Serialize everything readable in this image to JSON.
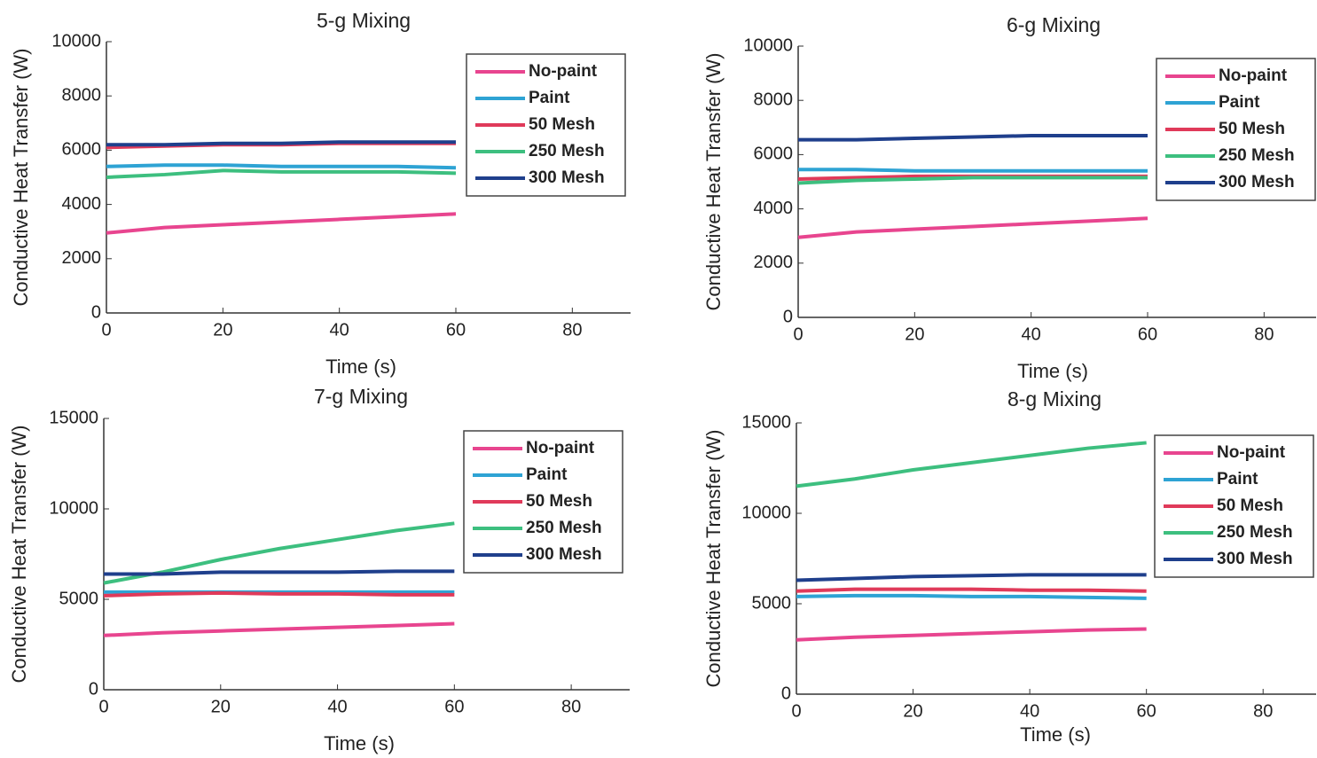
{
  "chart_data": [
    {
      "type": "line",
      "title": "5-g Mixing",
      "xlabel": "Time (s)",
      "ylabel": "Conductive Heat Transfer (W)",
      "x": [
        0,
        10,
        20,
        30,
        40,
        50,
        60
      ],
      "xlim": [
        0,
        90
      ],
      "xticks": [
        0,
        20,
        40,
        60,
        80
      ],
      "ylim": [
        0,
        10000
      ],
      "yticks": [
        0,
        2000,
        4000,
        6000,
        8000,
        10000
      ],
      "series": [
        {
          "name": "No-paint",
          "color": "#e8458f",
          "values": [
            2950,
            3150,
            3250,
            3350,
            3450,
            3550,
            3650
          ]
        },
        {
          "name": "Paint",
          "color": "#2ea3d4",
          "values": [
            5400,
            5450,
            5450,
            5400,
            5400,
            5400,
            5350
          ]
        },
        {
          "name": "50 Mesh",
          "color": "#e03a5a",
          "values": [
            6100,
            6150,
            6200,
            6200,
            6250,
            6250,
            6250
          ]
        },
        {
          "name": "250 Mesh",
          "color": "#3dbf7f",
          "values": [
            5000,
            5100,
            5250,
            5200,
            5200,
            5200,
            5150
          ]
        },
        {
          "name": "300 Mesh",
          "color": "#1f3f8c",
          "values": [
            6200,
            6200,
            6250,
            6250,
            6300,
            6300,
            6300
          ]
        }
      ]
    },
    {
      "type": "line",
      "title": "6-g Mixing",
      "xlabel": "Time (s)",
      "ylabel": "Conductive Heat Transfer (W)",
      "x": [
        0,
        10,
        20,
        30,
        40,
        50,
        60
      ],
      "xlim": [
        0,
        90
      ],
      "xticks": [
        0,
        20,
        40,
        60,
        80
      ],
      "ylim": [
        0,
        10000
      ],
      "yticks": [
        0,
        2000,
        4000,
        6000,
        8000,
        10000
      ],
      "series": [
        {
          "name": "No-paint",
          "color": "#e8458f",
          "values": [
            2950,
            3150,
            3250,
            3350,
            3450,
            3550,
            3650
          ]
        },
        {
          "name": "Paint",
          "color": "#2ea3d4",
          "values": [
            5450,
            5450,
            5400,
            5400,
            5400,
            5400,
            5400
          ]
        },
        {
          "name": "50 Mesh",
          "color": "#e03a5a",
          "values": [
            5100,
            5150,
            5200,
            5200,
            5200,
            5200,
            5200
          ]
        },
        {
          "name": "250 Mesh",
          "color": "#3dbf7f",
          "values": [
            4950,
            5050,
            5100,
            5150,
            5150,
            5150,
            5150
          ]
        },
        {
          "name": "300 Mesh",
          "color": "#1f3f8c",
          "values": [
            6550,
            6550,
            6600,
            6650,
            6700,
            6700,
            6700
          ]
        }
      ]
    },
    {
      "type": "line",
      "title": "7-g Mixing",
      "xlabel": "Time (s)",
      "ylabel": "Conductive Heat Transfer (W)",
      "x": [
        0,
        10,
        20,
        30,
        40,
        50,
        60
      ],
      "xlim": [
        0,
        90
      ],
      "xticks": [
        0,
        20,
        40,
        60,
        80
      ],
      "ylim": [
        0,
        15000
      ],
      "yticks": [
        0,
        5000,
        10000,
        15000
      ],
      "series": [
        {
          "name": "No-paint",
          "color": "#e8458f",
          "values": [
            3000,
            3150,
            3250,
            3350,
            3450,
            3550,
            3650
          ]
        },
        {
          "name": "Paint",
          "color": "#2ea3d4",
          "values": [
            5400,
            5400,
            5400,
            5400,
            5400,
            5400,
            5400
          ]
        },
        {
          "name": "50 Mesh",
          "color": "#e03a5a",
          "values": [
            5200,
            5300,
            5350,
            5300,
            5300,
            5250,
            5250
          ]
        },
        {
          "name": "250 Mesh",
          "color": "#3dbf7f",
          "values": [
            5900,
            6500,
            7200,
            7800,
            8300,
            8800,
            9200
          ]
        },
        {
          "name": "300 Mesh",
          "color": "#1f3f8c",
          "values": [
            6400,
            6400,
            6500,
            6500,
            6500,
            6550,
            6550
          ]
        }
      ]
    },
    {
      "type": "line",
      "title": "8-g Mixing",
      "xlabel": "Time (s)",
      "ylabel": "Conductive Heat Transfer (W)",
      "x": [
        0,
        10,
        20,
        30,
        40,
        50,
        60
      ],
      "xlim": [
        0,
        90
      ],
      "xticks": [
        0,
        20,
        40,
        60,
        80
      ],
      "ylim": [
        0,
        15000
      ],
      "yticks": [
        0,
        5000,
        10000,
        15000
      ],
      "series": [
        {
          "name": "No-paint",
          "color": "#e8458f",
          "values": [
            3000,
            3150,
            3250,
            3350,
            3450,
            3550,
            3600
          ]
        },
        {
          "name": "Paint",
          "color": "#2ea3d4",
          "values": [
            5400,
            5450,
            5450,
            5400,
            5400,
            5350,
            5300
          ]
        },
        {
          "name": "50 Mesh",
          "color": "#e03a5a",
          "values": [
            5700,
            5800,
            5800,
            5800,
            5750,
            5750,
            5700
          ]
        },
        {
          "name": "250 Mesh",
          "color": "#3dbf7f",
          "values": [
            11500,
            11900,
            12400,
            12800,
            13200,
            13600,
            13900
          ]
        },
        {
          "name": "300 Mesh",
          "color": "#1f3f8c",
          "values": [
            6300,
            6400,
            6500,
            6550,
            6600,
            6600,
            6600
          ]
        }
      ]
    }
  ]
}
